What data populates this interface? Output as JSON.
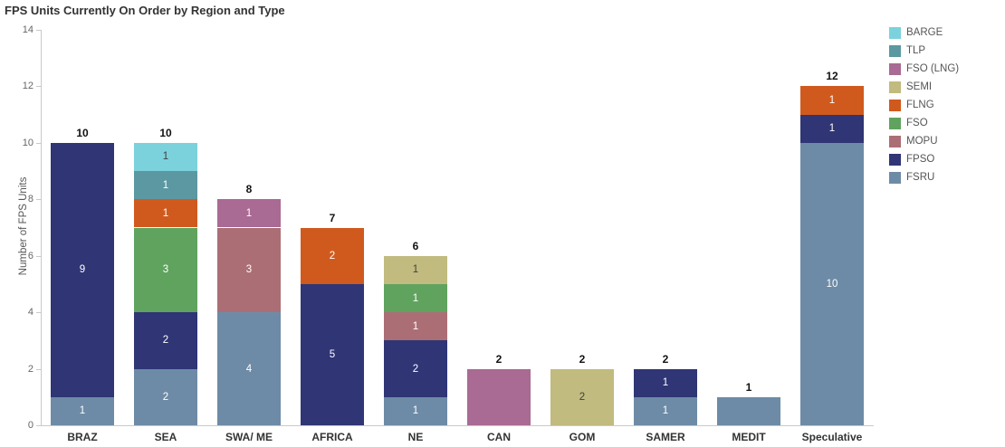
{
  "chart_data": {
    "type": "bar",
    "stacked": true,
    "title": "FPS Units Currently On Order by Region and Type",
    "ylabel": "Number of FPS Units",
    "xlabel": "",
    "ylim": [
      0,
      14
    ],
    "yticks": [
      0,
      2,
      4,
      6,
      8,
      10,
      12,
      14
    ],
    "grid": "off",
    "legend_position": "top-right",
    "categories": [
      "BRAZ",
      "SEA",
      "SWA/ ME",
      "AFRICA",
      "NE",
      "CAN",
      "GOM",
      "SAMER",
      "MEDIT",
      "Speculative"
    ],
    "totals": [
      "10",
      "10",
      "8",
      "7",
      "6",
      "2",
      "2",
      "2",
      "1",
      "12"
    ],
    "legend": [
      {
        "label": "BARGE",
        "color": "#7bd2dc"
      },
      {
        "label": "TLP",
        "color": "#5b98a2"
      },
      {
        "label": "FSO (LNG)",
        "color": "#a96a93"
      },
      {
        "label": "SEMI",
        "color": "#c1bb7f"
      },
      {
        "label": "FLNG",
        "color": "#d05a1e"
      },
      {
        "label": "FSO",
        "color": "#60a35f"
      },
      {
        "label": "MOPU",
        "color": "#ac6e75"
      },
      {
        "label": "FPSO",
        "color": "#2f3575"
      },
      {
        "label": "FSRU",
        "color": "#6d8ba6"
      }
    ],
    "series": [
      {
        "name": "FSRU",
        "color": "#6d8ba6",
        "label_color": "#ffffff",
        "values": [
          1,
          2,
          4,
          0,
          1,
          0,
          0,
          1,
          1,
          10
        ],
        "labels": [
          "1",
          "2",
          "4",
          "",
          "1",
          "",
          "",
          "1",
          "",
          "10"
        ]
      },
      {
        "name": "FPSO",
        "color": "#2f3575",
        "label_color": "#ffffff",
        "values": [
          9,
          2,
          0,
          5,
          2,
          0,
          0,
          1,
          0,
          1
        ],
        "labels": [
          "9",
          "2",
          "",
          "5",
          "2",
          "",
          "",
          "1",
          "",
          "1"
        ]
      },
      {
        "name": "MOPU",
        "color": "#ac6e75",
        "label_color": "#ffffff",
        "values": [
          0,
          0,
          3,
          0,
          1,
          0,
          0,
          0,
          0,
          0
        ],
        "labels": [
          "",
          "",
          "3",
          "",
          "1",
          "",
          "",
          "",
          "",
          ""
        ]
      },
      {
        "name": "FSO",
        "color": "#60a35f",
        "label_color": "#ffffff",
        "values": [
          0,
          3,
          0,
          0,
          1,
          0,
          0,
          0,
          0,
          0
        ],
        "labels": [
          "",
          "3",
          "",
          "",
          "1",
          "",
          "",
          "",
          "",
          ""
        ]
      },
      {
        "name": "FLNG",
        "color": "#d05a1e",
        "label_color": "#ffffff",
        "values": [
          0,
          1,
          0,
          2,
          0,
          0,
          0,
          0,
          0,
          1
        ],
        "labels": [
          "",
          "1",
          "",
          "2",
          "",
          "",
          "",
          "",
          "",
          "1"
        ]
      },
      {
        "name": "SEMI",
        "color": "#c1bb7f",
        "label_color": "#3f3f3f",
        "values": [
          0,
          0,
          0,
          0,
          1,
          0,
          2,
          0,
          0,
          0
        ],
        "labels": [
          "",
          "",
          "",
          "",
          "1",
          "",
          "2",
          "",
          "",
          ""
        ]
      },
      {
        "name": "FSO (LNG)",
        "color": "#a96a93",
        "label_color": "#ffffff",
        "values": [
          0,
          0,
          1,
          0,
          0,
          2,
          0,
          0,
          0,
          0
        ],
        "labels": [
          "",
          "",
          "1",
          "",
          "",
          "",
          "",
          "",
          "",
          ""
        ]
      },
      {
        "name": "TLP",
        "color": "#5b98a2",
        "label_color": "#ffffff",
        "values": [
          0,
          1,
          0,
          0,
          0,
          0,
          0,
          0,
          0,
          0
        ],
        "labels": [
          "",
          "1",
          "",
          "",
          "",
          "",
          "",
          "",
          "",
          ""
        ]
      },
      {
        "name": "BARGE",
        "color": "#7bd2dc",
        "label_color": "#3f3f3f",
        "values": [
          0,
          1,
          0,
          0,
          0,
          0,
          0,
          0,
          0,
          0
        ],
        "labels": [
          "",
          "1",
          "",
          "",
          "",
          "",
          "",
          "",
          "",
          ""
        ]
      }
    ]
  }
}
